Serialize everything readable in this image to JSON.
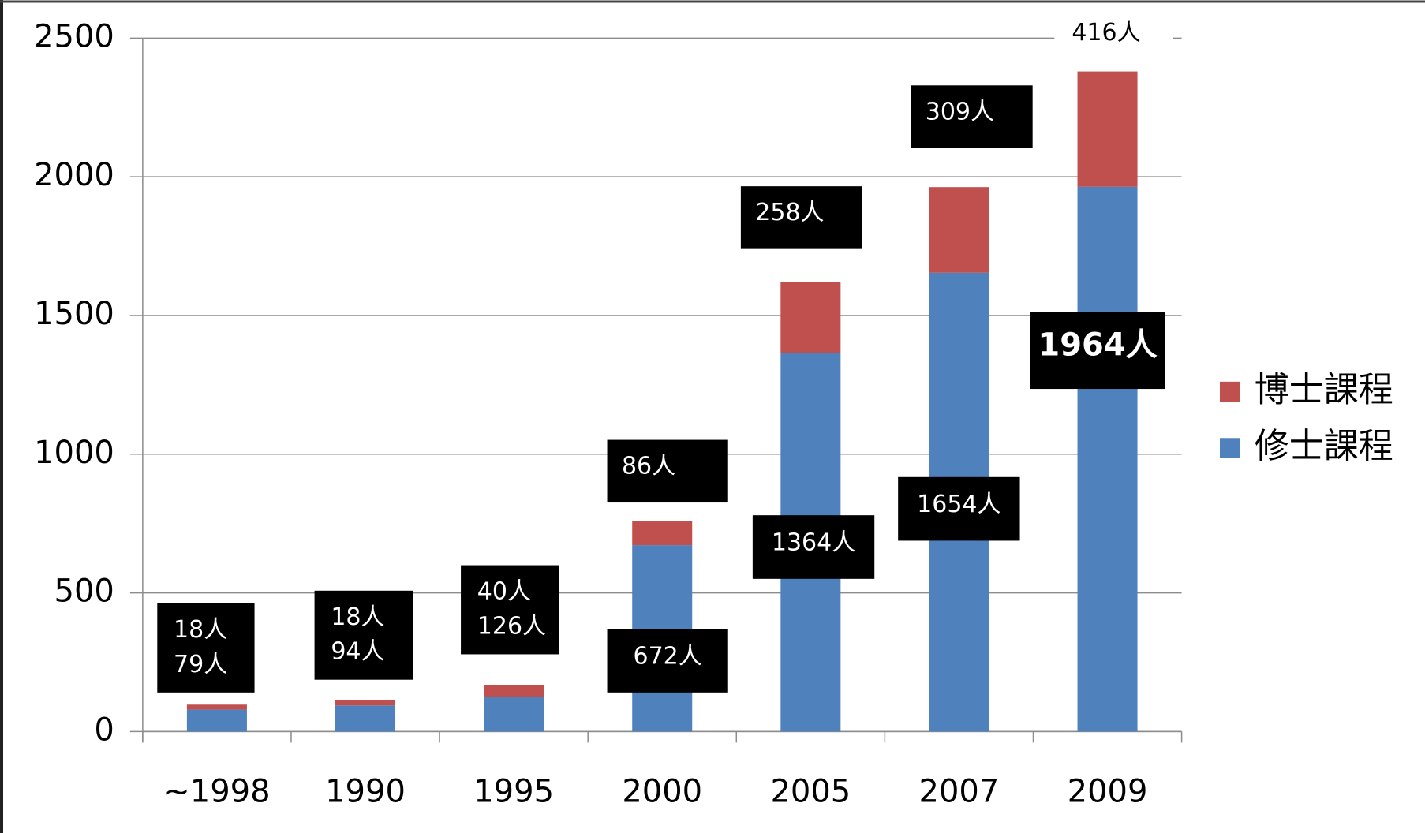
{
  "chart_data": {
    "type": "bar",
    "stacked": true,
    "categories": [
      "~1998",
      "1990",
      "1995",
      "2000",
      "2005",
      "2007",
      "2009"
    ],
    "series": [
      {
        "name": "修士課程",
        "color": "#4f81bd",
        "values": [
          79,
          94,
          126,
          672,
          1364,
          1654,
          1964
        ],
        "value_labels": [
          "79人",
          "94人",
          "126人",
          "672人",
          "1364人",
          "1654人",
          "1964人"
        ]
      },
      {
        "name": "博士課程",
        "color": "#c0504d",
        "values": [
          18,
          18,
          40,
          86,
          258,
          309,
          416
        ],
        "value_labels": [
          "18人",
          "18人",
          "40人",
          "86人",
          "258人",
          "309人",
          "416人"
        ]
      }
    ],
    "ylim": [
      0,
      2500
    ],
    "yticks": [
      0,
      500,
      1000,
      1500,
      2000,
      2500
    ],
    "grid": true,
    "legend": "right"
  }
}
